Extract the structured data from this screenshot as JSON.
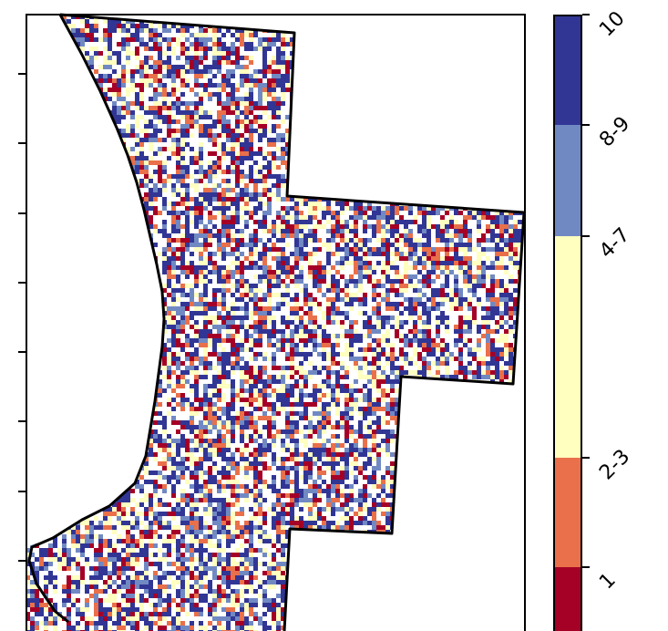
{
  "map": {
    "legend": {
      "classes": [
        {
          "label": "1",
          "color": "#a50026"
        },
        {
          "label": "2-3",
          "color": "#e9704a"
        },
        {
          "label": "4-7",
          "color": "#ffffc0"
        },
        {
          "label": "8-9",
          "color": "#7189c3"
        },
        {
          "label": "10",
          "color": "#313695"
        }
      ]
    },
    "boundary_color": "#000000",
    "background": "#ffffff"
  }
}
